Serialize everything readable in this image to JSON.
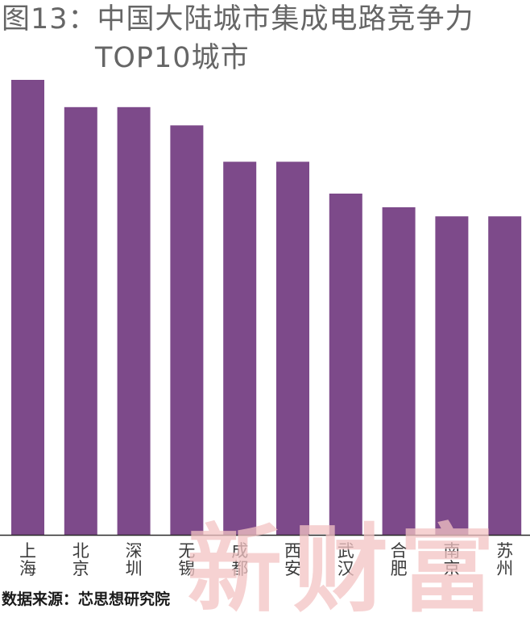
{
  "title": {
    "line1": "图13：中国大陆城市集成电路竞争力",
    "line2": "TOP10城市"
  },
  "source": "数据来源：芯思想研究院",
  "watermark": "新财富",
  "colors": {
    "bar": "#7d4a8a",
    "baseline": "#2b2b2b",
    "title": "#666666",
    "watermark": "#f3c4c4"
  },
  "chart_data": {
    "type": "bar",
    "title": "图13：中国大陆城市集成电路竞争力TOP10城市",
    "categories": [
      "上海",
      "北京",
      "深圳",
      "无锡",
      "成都",
      "西安",
      "武汉",
      "合肥",
      "南京",
      "苏州"
    ],
    "values": [
      100,
      94,
      94,
      90,
      82,
      82,
      75,
      72,
      70,
      70
    ],
    "ylim": [
      0,
      100
    ],
    "grid": false,
    "legend": "none",
    "axis_y_visible": false
  }
}
